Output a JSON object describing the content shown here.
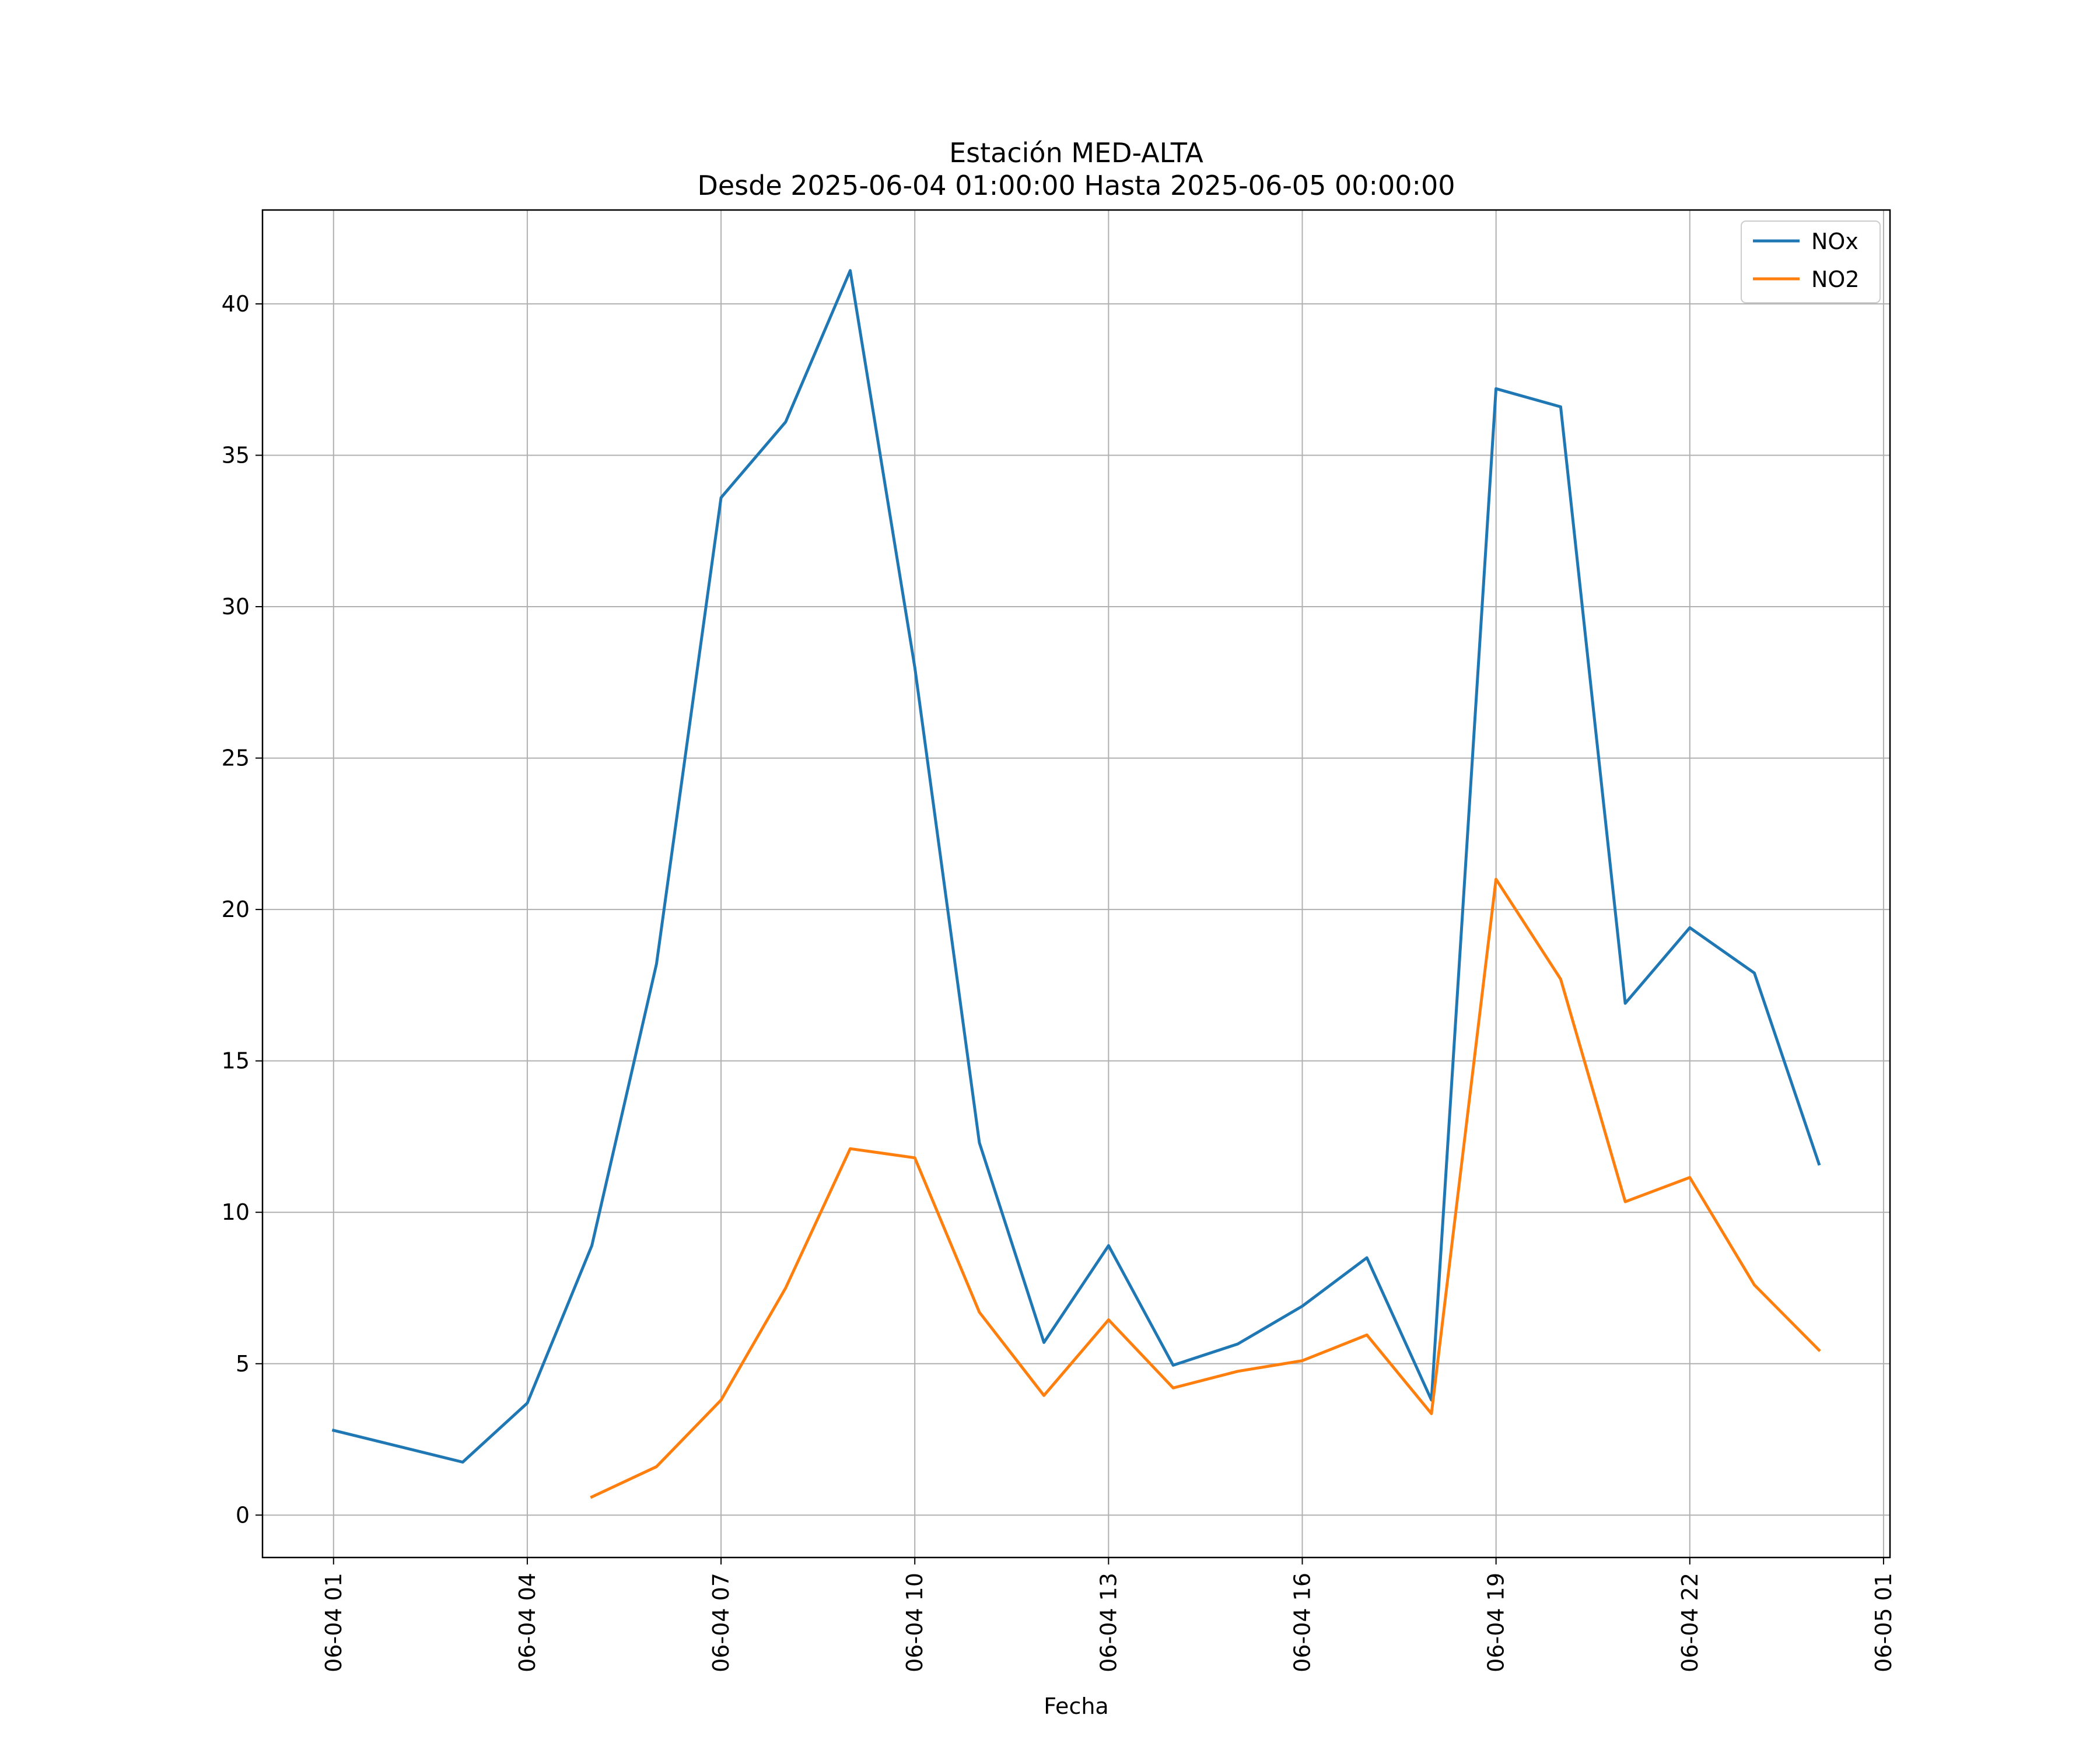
{
  "chart_data": {
    "type": "line",
    "title": "Estación MED-ALTA",
    "subtitle": "Desde 2025-06-04 01:00:00 Hasta 2025-06-05 00:00:00",
    "xlabel": "Fecha",
    "ylabel": "",
    "x_tick_labels": [
      "06-04 01",
      "06-04 04",
      "06-04 07",
      "06-04 10",
      "06-04 13",
      "06-04 16",
      "06-04 19",
      "06-04 22",
      "06-05 01"
    ],
    "x_tick_hours": [
      1,
      4,
      7,
      10,
      13,
      16,
      19,
      22,
      25
    ],
    "y_ticks": [
      0,
      5,
      10,
      15,
      20,
      25,
      30,
      35,
      40
    ],
    "xlim_hours": [
      -0.1,
      25.1
    ],
    "ylim": [
      -1.4,
      43.1
    ],
    "grid": true,
    "legend_position": "top-right",
    "series": [
      {
        "name": "NOx",
        "color": "#1f77b4",
        "x_hours": [
          1,
          3,
          4,
          5,
          6,
          7,
          8,
          9,
          10,
          11,
          12,
          13,
          14,
          15,
          16,
          17,
          18,
          19,
          20,
          21,
          22,
          23,
          24
        ],
        "values": [
          2.8,
          1.75,
          3.7,
          8.9,
          18.2,
          33.6,
          36.1,
          41.1,
          28.0,
          12.3,
          5.7,
          8.9,
          4.95,
          5.65,
          6.9,
          8.5,
          3.8,
          37.2,
          36.6,
          16.9,
          19.4,
          17.9,
          11.6
        ]
      },
      {
        "name": "NO2",
        "color": "#ff7f0e",
        "x_hours": [
          5,
          6,
          7,
          8,
          9,
          10,
          11,
          12,
          13,
          14,
          15,
          16,
          17,
          18,
          19,
          20,
          21,
          22,
          23,
          24
        ],
        "values": [
          0.6,
          1.6,
          3.8,
          7.5,
          12.1,
          11.8,
          6.7,
          3.95,
          6.45,
          4.2,
          4.75,
          5.1,
          5.95,
          3.35,
          21.0,
          17.7,
          10.35,
          11.15,
          7.6,
          5.45
        ]
      }
    ]
  }
}
